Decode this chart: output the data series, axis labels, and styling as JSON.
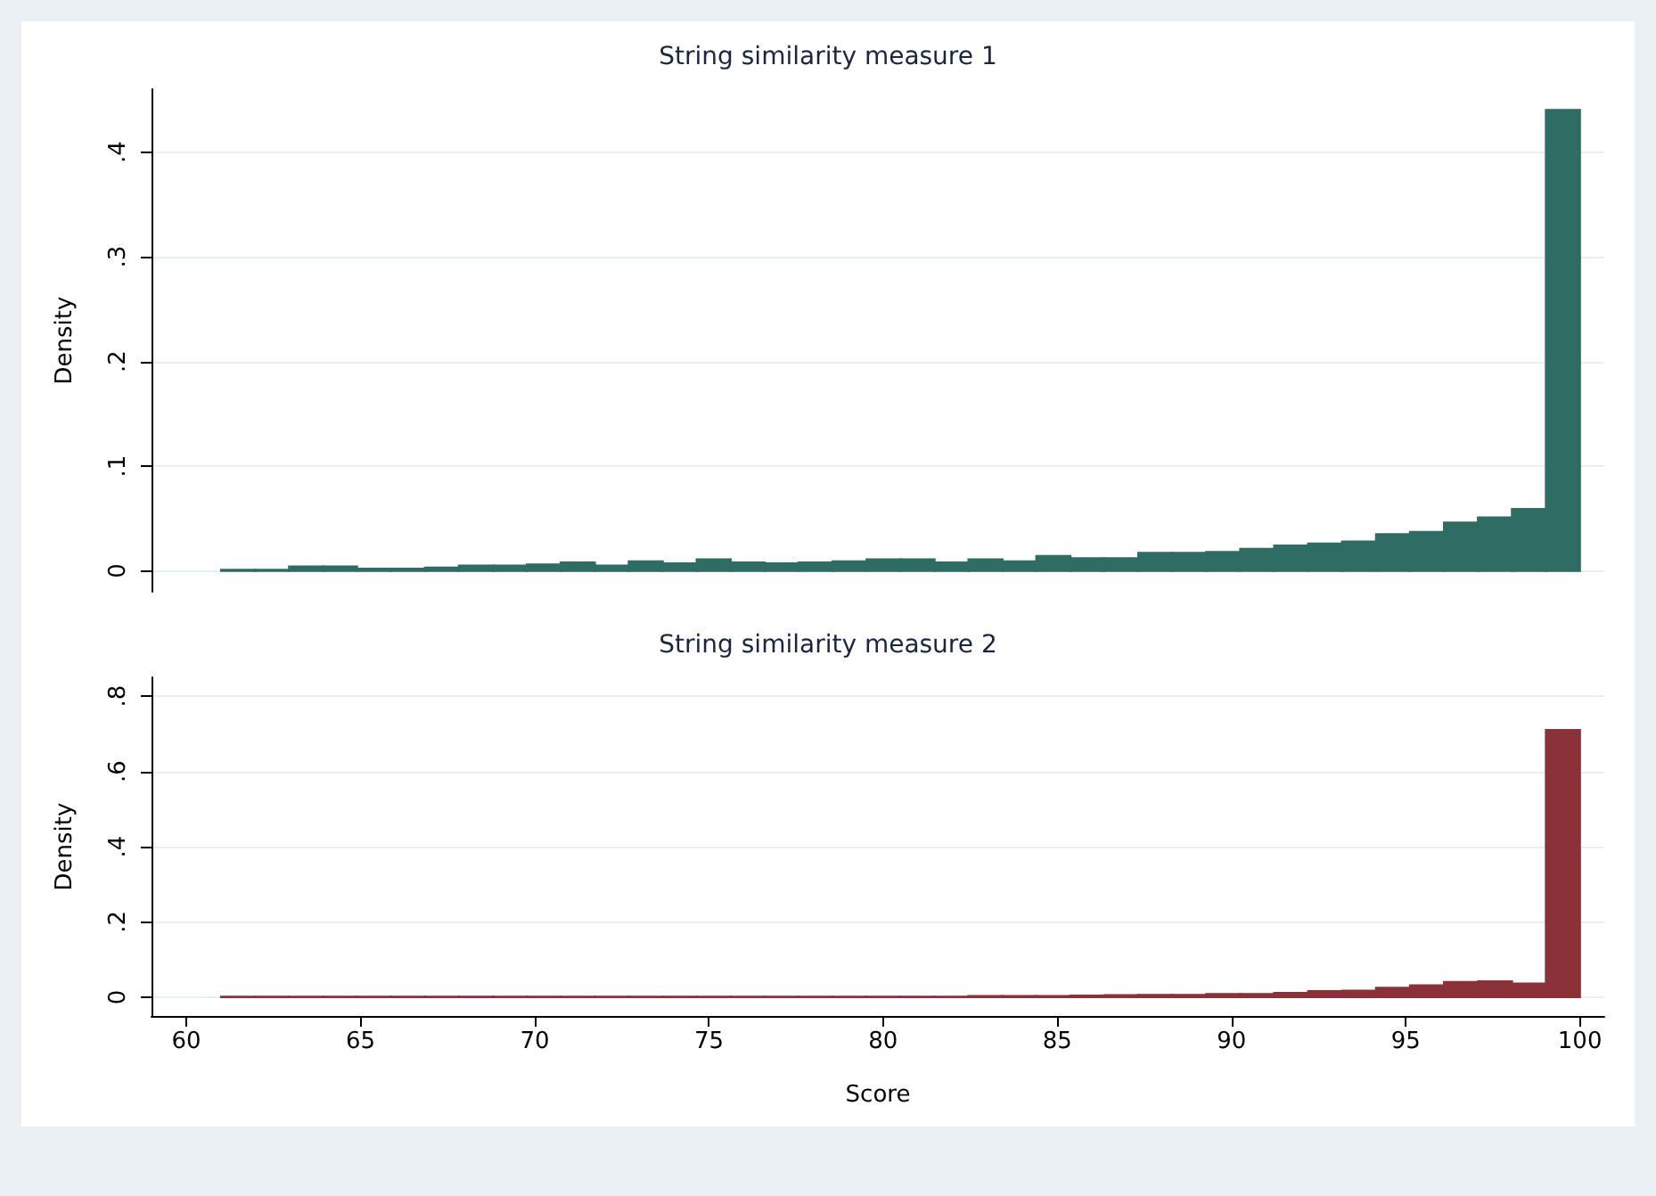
{
  "chart_data": [
    {
      "type": "histogram",
      "title": "String similarity measure 1",
      "ylabel": "Density",
      "color": "#2f6d64",
      "bins": [
        61,
        61.975,
        62.95,
        63.925,
        64.9,
        65.875,
        66.85,
        67.825,
        68.8,
        69.775,
        70.75,
        71.725,
        72.7,
        73.675,
        74.65,
        75.625,
        76.6,
        77.575,
        78.55,
        79.525,
        80.5,
        81.475,
        82.45,
        83.425,
        84.4,
        85.375,
        86.35,
        87.325,
        88.3,
        89.275,
        90.25,
        91.225,
        92.2,
        93.175,
        94.15,
        95.125,
        96.1,
        97.075,
        98.05,
        99.025,
        100
      ],
      "values": [
        0.001,
        0.001,
        0.004,
        0.004,
        0.002,
        0.002,
        0.003,
        0.005,
        0.005,
        0.006,
        0.008,
        0.005,
        0.009,
        0.007,
        0.011,
        0.008,
        0.007,
        0.008,
        0.009,
        0.011,
        0.011,
        0.008,
        0.011,
        0.009,
        0.014,
        0.012,
        0.012,
        0.017,
        0.017,
        0.018,
        0.021,
        0.024,
        0.026,
        0.028,
        0.035,
        0.037,
        0.046,
        0.051,
        0.059,
        0.44
      ],
      "xlim": [
        59,
        100.7
      ],
      "ylim": [
        -0.02,
        0.46
      ],
      "yticks": [
        {
          "value": 0,
          "label": "0"
        },
        {
          "value": 0.1,
          "label": ".1"
        },
        {
          "value": 0.2,
          "label": ".2"
        },
        {
          "value": 0.3,
          "label": ".3"
        },
        {
          "value": 0.4,
          "label": ".4"
        }
      ],
      "tick_labels": "y",
      "grid": "y"
    },
    {
      "type": "histogram",
      "title": "String similarity measure 2",
      "xlabel": "Score",
      "ylabel": "Density",
      "color": "#8b3139",
      "bins": [
        61,
        61.975,
        62.95,
        63.925,
        64.9,
        65.875,
        66.85,
        67.825,
        68.8,
        69.775,
        70.75,
        71.725,
        72.7,
        73.675,
        74.65,
        75.625,
        76.6,
        77.575,
        78.55,
        79.525,
        80.5,
        81.475,
        82.45,
        83.425,
        84.4,
        85.375,
        86.35,
        87.325,
        88.3,
        89.275,
        90.25,
        91.225,
        92.2,
        93.175,
        94.15,
        95.125,
        96.1,
        97.075,
        98.05,
        99.025,
        100
      ],
      "values": [
        0.001,
        0.001,
        0.001,
        0.001,
        0.001,
        0.001,
        0.001,
        0.001,
        0.001,
        0.001,
        0.001,
        0.001,
        0.001,
        0.001,
        0.001,
        0.001,
        0.001,
        0.001,
        0.001,
        0.001,
        0.001,
        0.001,
        0.003,
        0.003,
        0.003,
        0.004,
        0.005,
        0.006,
        0.006,
        0.008,
        0.008,
        0.011,
        0.016,
        0.017,
        0.025,
        0.031,
        0.04,
        0.042,
        0.036,
        0.71
      ],
      "xlim": [
        59,
        100.7
      ],
      "ylim": [
        -0.05,
        0.85
      ],
      "xticks": [
        60,
        65,
        70,
        75,
        80,
        85,
        90,
        95,
        100
      ],
      "yticks": [
        {
          "value": 0,
          "label": "0"
        },
        {
          "value": 0.2,
          "label": ".2"
        },
        {
          "value": 0.4,
          "label": ".4"
        },
        {
          "value": 0.6,
          "label": ".6"
        },
        {
          "value": 0.8,
          "label": ".8"
        }
      ],
      "grid": "y"
    }
  ]
}
